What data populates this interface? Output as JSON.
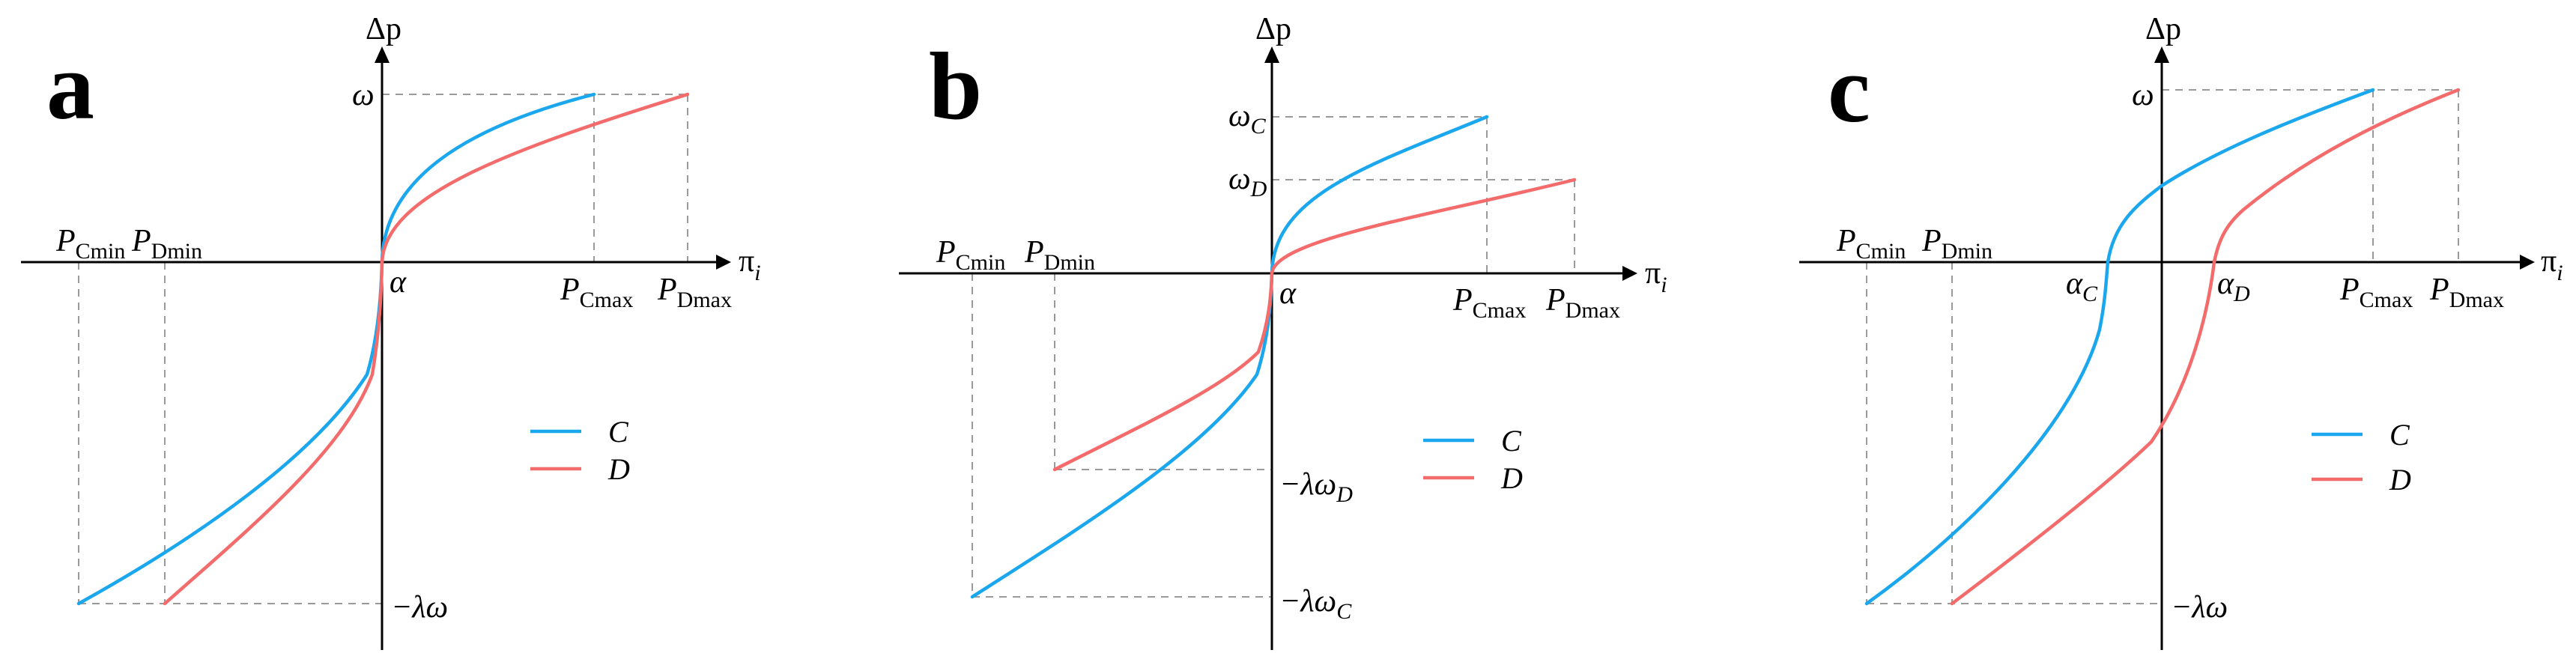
{
  "colors": {
    "C": "#1ba7ee",
    "D": "#f36b6b"
  },
  "panels": [
    {
      "letter": "a",
      "y_axis_label": "Δp",
      "x_axis_label": "π",
      "x_axis_label_sub": "i",
      "legend": [
        "C",
        "D"
      ],
      "labels": {
        "omega": "ω",
        "neg_lambda_omega": "−λω",
        "alpha": "α",
        "p_c_min": "P",
        "p_c_min_sub": "Cmin",
        "p_d_min": "P",
        "p_d_min_sub": "Dmin",
        "p_c_max": "P",
        "p_c_max_sub": "Cmax",
        "p_d_max": "P",
        "p_d_max_sub": "Dmax"
      }
    },
    {
      "letter": "b",
      "y_axis_label": "Δp",
      "x_axis_label": "π",
      "x_axis_label_sub": "i",
      "legend": [
        "C",
        "D"
      ],
      "labels": {
        "omega_c": "ω",
        "omega_c_sub": "C",
        "omega_d": "ω",
        "omega_d_sub": "D",
        "neg_lambda_omega_d": "−λω",
        "neg_lambda_omega_d_sub": "D",
        "neg_lambda_omega_c": "−λω",
        "neg_lambda_omega_c_sub": "C",
        "alpha": "α",
        "p_c_min": "P",
        "p_c_min_sub": "Cmin",
        "p_d_min": "P",
        "p_d_min_sub": "Dmin",
        "p_c_max": "P",
        "p_c_max_sub": "Cmax",
        "p_d_max": "P",
        "p_d_max_sub": "Dmax"
      }
    },
    {
      "letter": "c",
      "y_axis_label": "Δp",
      "x_axis_label": "π",
      "x_axis_label_sub": "i",
      "legend": [
        "C",
        "D"
      ],
      "labels": {
        "omega": "ω",
        "neg_lambda_omega": "−λω",
        "alpha_c": "α",
        "alpha_c_sub": "C",
        "alpha_d": "α",
        "alpha_d_sub": "D",
        "p_c_min": "P",
        "p_c_min_sub": "Cmin",
        "p_d_min": "P",
        "p_d_min_sub": "Dmin",
        "p_c_max": "P",
        "p_c_max_sub": "Cmax",
        "p_d_max": "P",
        "p_d_max_sub": "Dmax"
      }
    }
  ]
}
